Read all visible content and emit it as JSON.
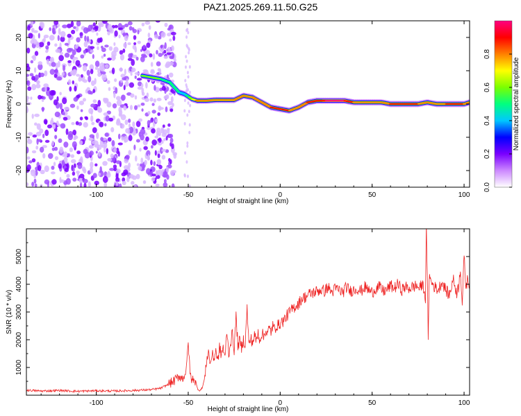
{
  "title": "PAZ1.2025.269.11.50.G25",
  "chart_data": [
    {
      "type": "heatmap",
      "name": "spectrogram",
      "xlabel": "Height of straight line (km)",
      "ylabel": "Frequency (Hz)",
      "xlim": [
        -138,
        103
      ],
      "ylim": [
        -25,
        25
      ],
      "xticks": [
        -100,
        -50,
        0,
        50,
        100
      ],
      "xtick_labels": [
        "-100",
        "-50",
        "0",
        "50",
        "100"
      ],
      "yticks": [
        -20,
        -10,
        0,
        10,
        20
      ],
      "ytick_labels": [
        "-20",
        "-10",
        "0",
        "10",
        "20"
      ],
      "colorbar": {
        "label": "Normalized spectral amplitude",
        "range": [
          0.0,
          1.0
        ],
        "ticks": [
          0.0,
          0.2,
          0.4,
          0.6,
          0.8
        ],
        "tick_labels": [
          "0.0",
          "0.2",
          "0.4",
          "0.6",
          "0.8"
        ],
        "colors": [
          "#ffffff",
          "#cc88ff",
          "#7a00ff",
          "#0000ff",
          "#00c8ff",
          "#00ff80",
          "#7aff00",
          "#ffff00",
          "#ff8000",
          "#ff0000",
          "#ff0080"
        ]
      },
      "noise_region_x": [
        -138,
        -63
      ],
      "ridge": {
        "x": [
          -75,
          -70,
          -65,
          -60,
          -55,
          -52,
          -48,
          -45,
          -40,
          -35,
          -30,
          -25,
          -20,
          -15,
          -10,
          -5,
          0,
          5,
          10,
          15,
          20,
          25,
          30,
          35,
          40,
          45,
          50,
          55,
          60,
          65,
          70,
          75,
          80,
          85,
          90,
          95,
          100,
          103
        ],
        "y": [
          8.5,
          8.0,
          7.5,
          6.5,
          3.5,
          3.0,
          1.5,
          1.0,
          1.0,
          1.2,
          1.2,
          1.2,
          2.5,
          2.0,
          0.5,
          -1.0,
          -1.5,
          -2.0,
          -1.0,
          0.5,
          1.0,
          1.0,
          1.0,
          1.0,
          0.5,
          0.5,
          0.5,
          0.5,
          0.0,
          0.0,
          0.0,
          0.0,
          0.5,
          0.0,
          0.0,
          0.0,
          0.0,
          0.5
        ],
        "amplitude": [
          0.55,
          0.6,
          0.55,
          0.5,
          0.45,
          0.4,
          0.65,
          0.8,
          0.85,
          0.8,
          0.85,
          0.8,
          0.85,
          0.8,
          0.8,
          0.85,
          0.9,
          0.85,
          0.8,
          0.85,
          0.9,
          0.95,
          0.95,
          0.95,
          0.85,
          0.8,
          0.8,
          0.8,
          0.85,
          0.9,
          0.85,
          0.85,
          0.8,
          0.8,
          0.85,
          0.9,
          0.85,
          0.8
        ]
      }
    },
    {
      "type": "line",
      "name": "snr",
      "xlabel": "Height of straight line (km)",
      "ylabel": "SNR (10 * v/v)",
      "xlim": [
        -138,
        103
      ],
      "ylim": [
        0,
        6000
      ],
      "xticks": [
        -100,
        -50,
        0,
        50,
        100
      ],
      "xtick_labels": [
        "-100",
        "-50",
        "0",
        "50",
        "100"
      ],
      "yticks": [
        1000,
        2000,
        3000,
        4000,
        5000
      ],
      "ytick_labels": [
        "1000",
        "2000",
        "3000",
        "4000",
        "5000"
      ],
      "color": "#ee2222",
      "x": [
        -138,
        -130,
        -120,
        -110,
        -100,
        -90,
        -80,
        -70,
        -65,
        -62,
        -60,
        -57,
        -55,
        -53,
        -51,
        -50,
        -49,
        -48,
        -47,
        -46,
        -45,
        -44,
        -43,
        -42,
        -41,
        -40,
        -39,
        -38,
        -37,
        -36,
        -35,
        -34,
        -33,
        -32,
        -31,
        -30,
        -29,
        -28,
        -27,
        -26,
        -25,
        -24,
        -23,
        -22,
        -21,
        -20,
        -19,
        -18,
        -17,
        -16,
        -15,
        -14,
        -13,
        -12,
        -11,
        -10,
        -9,
        -8,
        -7,
        -6,
        -5,
        -4,
        -3,
        -2,
        -1,
        0,
        2,
        4,
        6,
        8,
        10,
        12,
        14,
        16,
        18,
        20,
        22,
        24,
        26,
        28,
        30,
        32,
        34,
        36,
        38,
        40,
        42,
        44,
        46,
        48,
        50,
        52,
        54,
        56,
        58,
        60,
        62,
        64,
        66,
        68,
        70,
        72,
        74,
        76,
        77,
        78,
        79,
        79.5,
        80,
        80.5,
        81,
        82,
        84,
        86,
        88,
        90,
        92,
        94,
        96,
        97,
        98,
        99,
        100,
        101,
        102,
        103
      ],
      "y": [
        180,
        150,
        170,
        140,
        160,
        150,
        170,
        200,
        250,
        350,
        420,
        550,
        700,
        600,
        900,
        1950,
        800,
        500,
        650,
        450,
        250,
        180,
        200,
        350,
        600,
        1250,
        1600,
        1100,
        1500,
        1300,
        1650,
        1200,
        1700,
        1450,
        1750,
        1300,
        2350,
        1500,
        1900,
        2200,
        1650,
        2850,
        1800,
        1950,
        1700,
        2000,
        1850,
        3150,
        1800,
        2050,
        1900,
        2150,
        1950,
        2250,
        2000,
        2250,
        2100,
        2350,
        2200,
        2400,
        2300,
        2500,
        2350,
        2550,
        2500,
        2600,
        2700,
        2900,
        3050,
        3200,
        3300,
        3500,
        3550,
        3650,
        3700,
        3750,
        3800,
        3750,
        3900,
        3700,
        3850,
        3800,
        3700,
        3900,
        3750,
        3800,
        3850,
        3750,
        3900,
        3800,
        3700,
        3850,
        3900,
        3750,
        3800,
        3950,
        3850,
        4000,
        3800,
        3900,
        3850,
        3900,
        3950,
        3850,
        4000,
        3900,
        3500,
        6000,
        4200,
        2000,
        4300,
        4100,
        3900,
        3800,
        4100,
        3800,
        3600,
        4200,
        3700,
        3900,
        4600,
        3300,
        5000,
        3900,
        4200,
        4000
      ]
    }
  ]
}
